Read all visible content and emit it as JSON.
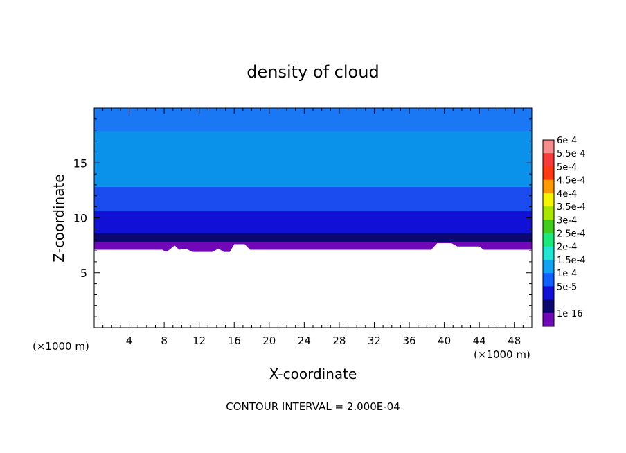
{
  "chart_data": {
    "type": "heatmap",
    "title": "density of cloud",
    "xlabel": "X-coordinate",
    "ylabel": "Z-coordinate",
    "x_unit_left": "(×1000 m)",
    "x_unit_right": "(×1000 m)",
    "footer": "CONTOUR INTERVAL = 2.000E-04",
    "xlim": [
      0,
      50
    ],
    "ylim": [
      0,
      20
    ],
    "x_ticks": [
      4,
      8,
      12,
      16,
      20,
      24,
      28,
      32,
      36,
      40,
      44,
      48
    ],
    "y_ticks": [
      5,
      10,
      15
    ],
    "colorbar": {
      "labels": [
        "6e-4",
        "5.5e-4",
        "5e-4",
        "4.5e-4",
        "4e-4",
        "3.5e-4",
        "3e-4",
        "2.5e-4",
        "2e-4",
        "1.5e-4",
        "1e-4",
        "5e-5",
        "1e-16"
      ],
      "colors": [
        "#f78c8c",
        "#f53a3a",
        "#ff3a12",
        "#ff9a00",
        "#f5f500",
        "#a8e600",
        "#40cc1a",
        "#1ae87a",
        "#20e6d2",
        "#12a2f2",
        "#1260ff",
        "#1010d6",
        "#0b0870",
        "#7008b8"
      ]
    },
    "bands": [
      {
        "level": "1e-16",
        "color": "#7008b8",
        "z_top": 7.8
      },
      {
        "level": "5e-5",
        "color": "#0b0870",
        "z_top": 8.6
      },
      {
        "level": "5e-5",
        "color": "#1010d6",
        "z_top": 10.6
      },
      {
        "level": "1e-4",
        "color": "#1a4cf0",
        "z_top": 12.8
      },
      {
        "level": "1.5e-4",
        "color": "#0a92ea",
        "z_top": 17.9
      },
      {
        "level": "1e-4",
        "color": "#1a78f5",
        "z_top": 20.0
      }
    ],
    "terrain": [
      [
        0,
        7.1
      ],
      [
        7.8,
        7.1
      ],
      [
        8.2,
        6.9
      ],
      [
        8.6,
        7.1
      ],
      [
        9.2,
        7.5
      ],
      [
        9.7,
        7.1
      ],
      [
        10.5,
        7.2
      ],
      [
        11.2,
        6.9
      ],
      [
        13.5,
        6.9
      ],
      [
        14.2,
        7.2
      ],
      [
        14.8,
        6.9
      ],
      [
        15.5,
        6.9
      ],
      [
        16,
        7.6
      ],
      [
        17.2,
        7.6
      ],
      [
        17.8,
        7.1
      ],
      [
        38.5,
        7.1
      ],
      [
        39.2,
        7.7
      ],
      [
        40.8,
        7.7
      ],
      [
        41.5,
        7.4
      ],
      [
        44,
        7.4
      ],
      [
        44.5,
        7.1
      ],
      [
        50,
        7.1
      ]
    ]
  }
}
